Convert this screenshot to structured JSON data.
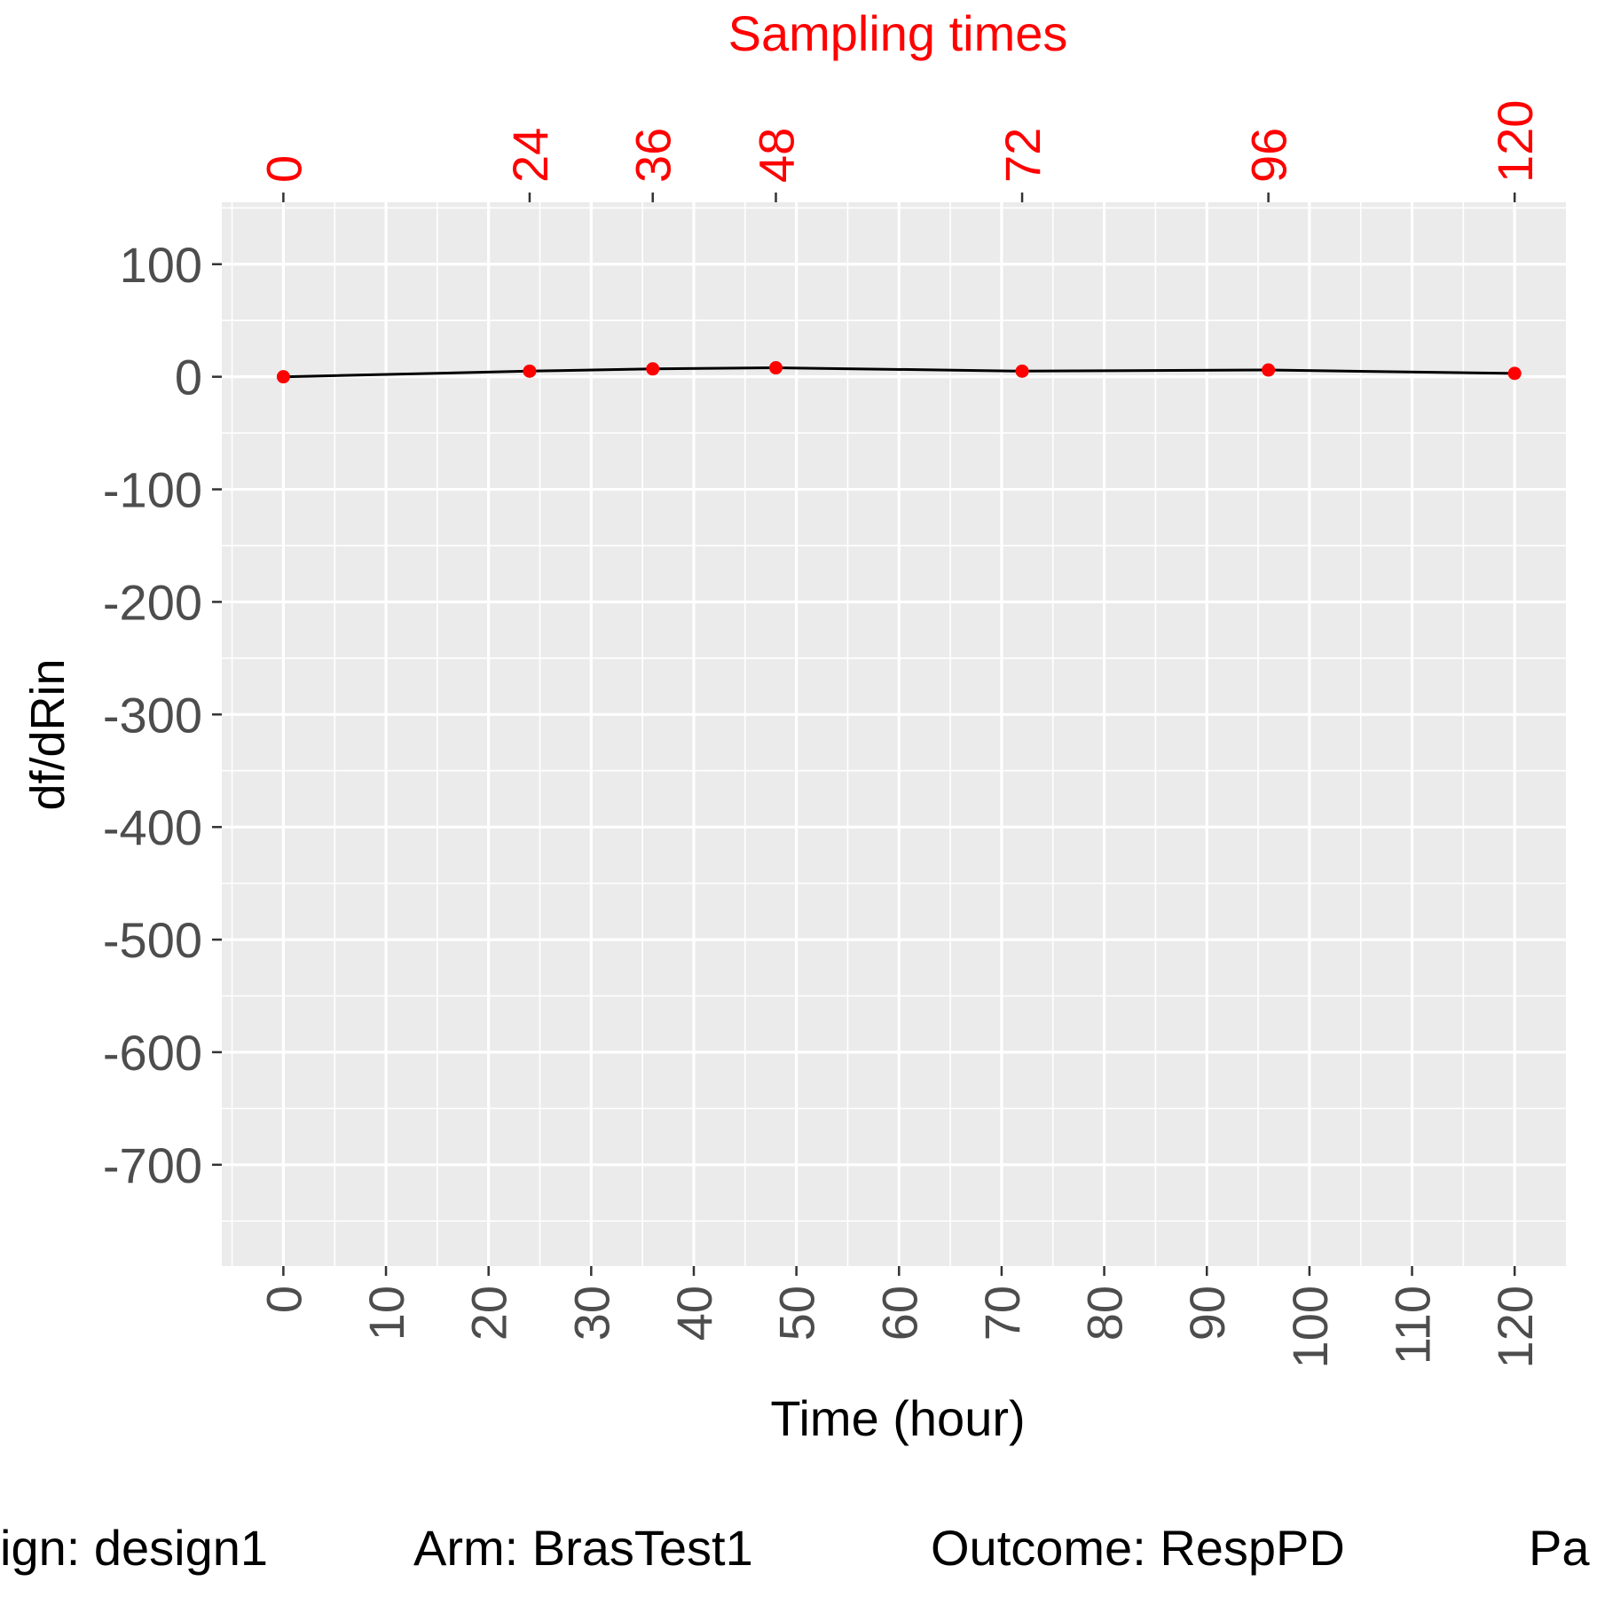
{
  "chart_data": {
    "type": "line",
    "title": "",
    "xlabel": "Time (hour)",
    "ylabel": "df/dRin",
    "top_axis_title": "Sampling times",
    "xlim": [
      -6,
      125
    ],
    "ylim": [
      -790,
      155
    ],
    "x_ticks": [
      0,
      10,
      20,
      30,
      40,
      50,
      60,
      70,
      80,
      90,
      100,
      110,
      120
    ],
    "y_ticks": [
      100,
      0,
      -100,
      -200,
      -300,
      -400,
      -500,
      -600,
      -700
    ],
    "sampling_times": [
      0,
      24,
      36,
      48,
      72,
      96,
      120
    ],
    "series": [
      {
        "x": [
          0,
          24,
          36,
          48,
          72,
          96,
          120
        ],
        "y": [
          0,
          5,
          7,
          8,
          5,
          6,
          3
        ],
        "line_color": "#000000",
        "point_color": "#ff0000"
      }
    ],
    "grid": true,
    "panel_background": "#ebebeb",
    "accent_color": "#ff0000",
    "tick_label_color": "#4d4d4d"
  },
  "footer": {
    "items": [
      "ign: design1",
      "Arm: BrasTest1",
      "Outcome: RespPD",
      "Pa"
    ]
  }
}
